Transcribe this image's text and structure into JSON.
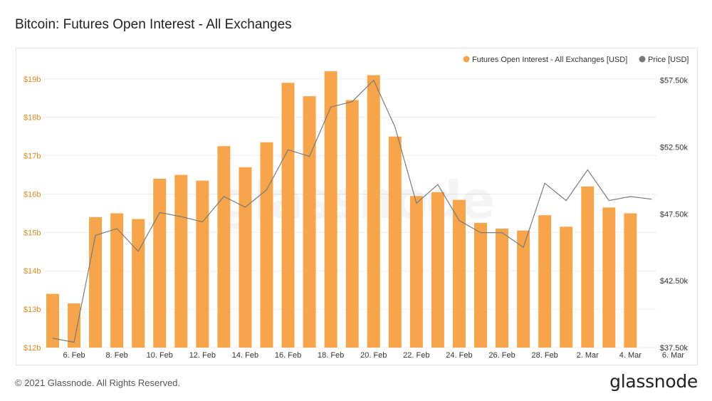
{
  "header": {
    "title": "Bitcoin: Futures Open Interest - All Exchanges"
  },
  "footer": {
    "copyright": "© 2021 Glassnode. All Rights Reserved.",
    "logo_text": "glassnode"
  },
  "watermark": "glassnode",
  "colors": {
    "bar": "#f7a54a",
    "price_line": "#7a7a7a",
    "left_axis": "#d98a26",
    "grid": "#ececec"
  },
  "chart_data": {
    "type": "bar",
    "title": "Bitcoin: Futures Open Interest - All Exchanges",
    "legend_position": "top-right",
    "grid": true,
    "x_tick_labels": [
      "6. Feb",
      "8. Feb",
      "10. Feb",
      "12. Feb",
      "14. Feb",
      "16. Feb",
      "18. Feb",
      "20. Feb",
      "22. Feb",
      "24. Feb",
      "26. Feb",
      "28. Feb",
      "2. Mar",
      "4. Mar",
      "6. Mar"
    ],
    "categories": [
      "5. Feb",
      "6. Feb",
      "7. Feb",
      "8. Feb",
      "9. Feb",
      "10. Feb",
      "11. Feb",
      "12. Feb",
      "13. Feb",
      "14. Feb",
      "15. Feb",
      "16. Feb",
      "17. Feb",
      "18. Feb",
      "19. Feb",
      "20. Feb",
      "21. Feb",
      "22. Feb",
      "23. Feb",
      "24. Feb",
      "25. Feb",
      "26. Feb",
      "27. Feb",
      "28. Feb",
      "1. Mar",
      "2. Mar",
      "3. Mar",
      "4. Mar",
      "5. Mar",
      "6. Mar"
    ],
    "series": [
      {
        "name": "Futures Open Interest - All Exchanges [USD]",
        "axis": "left",
        "type": "bar",
        "values": [
          13.4,
          13.15,
          15.4,
          15.5,
          15.35,
          16.4,
          16.5,
          16.35,
          17.25,
          16.7,
          17.35,
          18.9,
          18.55,
          19.2,
          18.45,
          19.1,
          17.5,
          15.95,
          16.05,
          15.85,
          15.25,
          15.1,
          15.05,
          15.45,
          15.15,
          16.2,
          15.65,
          15.5,
          null,
          null
        ]
      },
      {
        "name": "Price [USD]",
        "axis": "right",
        "type": "line",
        "values": [
          38200,
          37900,
          45900,
          46400,
          44700,
          47600,
          47300,
          46900,
          48800,
          48000,
          49300,
          52300,
          51800,
          55500,
          55900,
          57500,
          54000,
          48300,
          49700,
          47000,
          46100,
          46100,
          45000,
          49800,
          48500,
          50800,
          48500,
          48800,
          48600,
          null
        ]
      }
    ],
    "y_left": {
      "ticks": [
        "$12b",
        "$13b",
        "$14b",
        "$15b",
        "$16b",
        "$17b",
        "$18b",
        "$19b"
      ],
      "range": [
        12,
        19.35
      ]
    },
    "y_right": {
      "ticks": [
        "$37.50k",
        "$42.50k",
        "$47.50k",
        "$52.50k",
        "$57.50k"
      ],
      "range": [
        37500,
        58600
      ]
    }
  }
}
